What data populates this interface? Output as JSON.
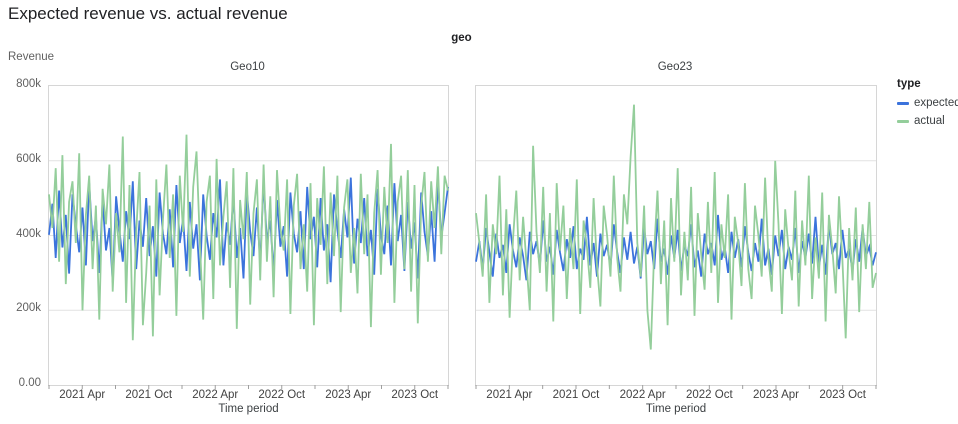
{
  "header": {
    "title": "Expected revenue vs. actual revenue"
  },
  "facet_header": {
    "label": "geo"
  },
  "legend": {
    "title": "type",
    "items": [
      {
        "label": "expected",
        "color": "#3b73dc"
      },
      {
        "label": "actual",
        "color": "#94ce9b"
      }
    ]
  },
  "y_axis": {
    "title": "Revenue",
    "tick_labels": [
      "0.00",
      "200k",
      "400k",
      "600k",
      "800k"
    ],
    "tick_values": [
      0,
      200,
      400,
      600,
      800
    ],
    "grid_values": [
      200,
      400,
      600
    ],
    "max": 800
  },
  "x_axis": {
    "title": "Time period",
    "tick_labels": [
      "2021 Apr",
      "2021 Oct",
      "2022 Apr",
      "2022 Oct",
      "2023 Apr",
      "2023 Oct"
    ],
    "label_months": [
      3,
      9,
      15,
      21,
      27,
      33
    ],
    "minor_months": [
      0,
      3,
      6,
      9,
      12,
      15,
      18,
      21,
      24,
      27,
      30,
      33,
      36
    ],
    "total_months": 36,
    "range": "2021 Jan – 2024 Jan"
  },
  "chart_data": [
    {
      "type": "line",
      "facet": "Geo10",
      "x_unit": "weekly samples, Jan 2021 to Dec 2023",
      "y_unit": "revenue in thousands",
      "ylim": [
        0,
        800
      ],
      "series": [
        {
          "name": "expected",
          "color": "#3b73dc",
          "values": [
            402,
            485,
            340,
            520,
            368,
            455,
            298,
            510,
            430,
            355,
            475,
            320,
            540,
            385,
            450,
            300,
            495,
            360,
            420,
            275,
            505,
            415,
            330,
            465,
            390,
            545,
            310,
            440,
            370,
            500,
            345,
            425,
            290,
            515,
            405,
            350,
            470,
            315,
            535,
            380,
            445,
            305,
            490,
            365,
            430,
            280,
            510,
            400,
            335,
            460,
            395,
            550,
            320,
            435,
            375,
            505,
            340,
            420,
            285,
            520,
            410,
            345,
            475,
            325,
            545,
            385,
            440,
            300,
            495,
            370,
            425,
            290,
            515,
            405,
            355,
            465,
            310,
            530,
            390,
            450,
            315,
            500,
            360,
            430,
            275,
            510,
            415,
            340,
            470,
            395,
            555,
            325,
            445,
            380,
            500,
            345,
            415,
            295,
            525,
            400,
            350,
            480,
            320,
            540,
            385,
            455,
            305,
            490,
            365,
            435,
            285,
            515,
            410,
            345,
            465,
            330,
            550,
            395,
            460,
            530
          ]
        },
        {
          "name": "actual",
          "color": "#94ce9b",
          "values": [
            510,
            420,
            580,
            330,
            615,
            270,
            490,
            545,
            380,
            620,
            200,
            455,
            560,
            310,
            480,
            175,
            525,
            430,
            590,
            250,
            460,
            355,
            665,
            220,
            535,
            120,
            410,
            570,
            160,
            300,
            480,
            130,
            550,
            240,
            445,
            590,
            340,
            510,
            185,
            560,
            410,
            670,
            290,
            530,
            625,
            380,
            175,
            490,
            560,
            230,
            605,
            320,
            450,
            545,
            260,
            580,
            150,
            495,
            390,
            570,
            215,
            460,
            550,
            280,
            590,
            330,
            505,
            235,
            575,
            420,
            360,
            550,
            190,
            480,
            565,
            310,
            430,
            250,
            540,
            160,
            500,
            375,
            585,
            270,
            515,
            345,
            560,
            195,
            475,
            550,
            300,
            420,
            245,
            565,
            350,
            510,
            155,
            460,
            575,
            295,
            530,
            380,
            645,
            220,
            490,
            560,
            310,
            575,
            250,
            535,
            165,
            480,
            570,
            330,
            545,
            420,
            585,
            350,
            560,
            520
          ]
        }
      ]
    },
    {
      "type": "line",
      "facet": "Geo23",
      "x_unit": "weekly samples, Jan 2021 to Dec 2023",
      "y_unit": "revenue in thousands",
      "ylim": [
        0,
        800
      ],
      "series": [
        {
          "name": "expected",
          "color": "#3b73dc",
          "values": [
            330,
            385,
            310,
            420,
            355,
            290,
            405,
            340,
            375,
            300,
            430,
            360,
            315,
            395,
            345,
            280,
            410,
            350,
            385,
            320,
            440,
            330,
            370,
            295,
            415,
            355,
            305,
            390,
            340,
            425,
            310,
            365,
            335,
            450,
            320,
            380,
            290,
            405,
            345,
            375,
            315,
            430,
            355,
            300,
            395,
            335,
            410,
            325,
            370,
            285,
            420,
            350,
            385,
            310,
            445,
            330,
            365,
            295,
            400,
            340,
            415,
            305,
            375,
            345,
            430,
            315,
            360,
            290,
            405,
            350,
            380,
            320,
            455,
            335,
            370,
            300,
            410,
            340,
            390,
            315,
            425,
            355,
            305,
            380,
            330,
            445,
            320,
            365,
            295,
            400,
            345,
            415,
            310,
            370,
            335,
            420,
            300,
            385,
            340,
            405,
            325,
            450,
            315,
            375,
            295,
            430,
            350,
            380,
            310,
            415,
            340,
            365,
            305,
            390,
            330,
            420,
            345,
            370,
            320,
            355
          ]
        },
        {
          "name": "actual",
          "color": "#94ce9b",
          "values": [
            460,
            380,
            290,
            510,
            220,
            430,
            350,
            560,
            240,
            470,
            180,
            390,
            520,
            280,
            450,
            330,
            200,
            640,
            410,
            300,
            530,
            250,
            460,
            170,
            540,
            360,
            480,
            230,
            420,
            310,
            550,
            190,
            440,
            370,
            260,
            500,
            320,
            210,
            480,
            400,
            290,
            560,
            340,
            250,
            510,
            430,
            610,
            750,
            380,
            290,
            480,
            200,
            95,
            360,
            520,
            270,
            440,
            160,
            500,
            330,
            580,
            240,
            410,
            280,
            530,
            185,
            460,
            350,
            255,
            490,
            300,
            570,
            220,
            430,
            340,
            510,
            175,
            450,
            380,
            265,
            540,
            310,
            230,
            480,
            400,
            290,
            555,
            340,
            250,
            600,
            430,
            190,
            470,
            360,
            280,
            520,
            210,
            440,
            320,
            560,
            230,
            395,
            285,
            515,
            170,
            455,
            365,
            245,
            505,
            335,
            125,
            420,
            280,
            475,
            195,
            430,
            310,
            490,
            260,
            300
          ]
        }
      ]
    }
  ]
}
